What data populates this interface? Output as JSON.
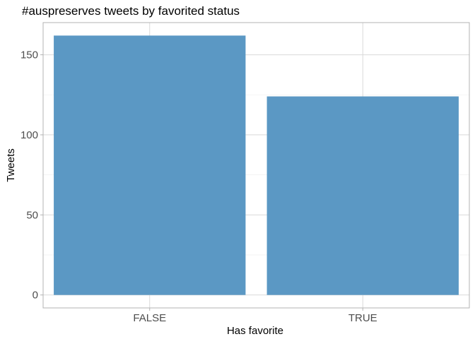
{
  "chart_data": {
    "type": "bar",
    "title": "#auspreserves tweets by favorited status",
    "xlabel": "Has favorite",
    "ylabel": "Tweets",
    "categories": [
      "FALSE",
      "TRUE"
    ],
    "values": [
      162,
      124
    ],
    "ylim": [
      -8.1,
      170.1
    ],
    "yticks": [
      0,
      50,
      100,
      150
    ],
    "grid": true,
    "bar_color": "#5b98c4",
    "grid_major_color": "#d9d9d9",
    "grid_minor_color": "#ececec",
    "panel_border_color": "#b3b3b3"
  }
}
